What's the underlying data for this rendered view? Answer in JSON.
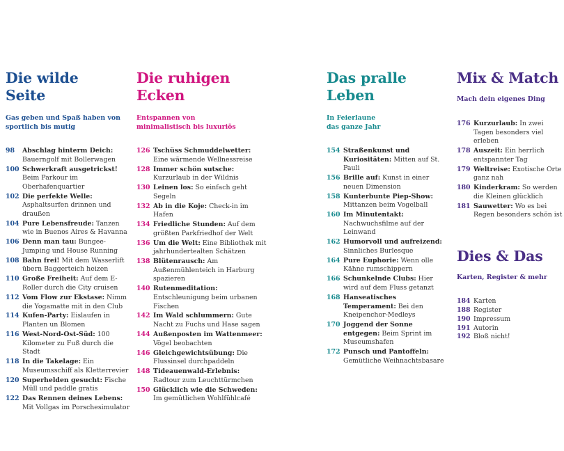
{
  "sections": [
    {
      "title_line1": "Die wilde",
      "title_line2": "Seite",
      "subtitle_line1": "Gas geben und Spaß haben von",
      "subtitle_line2": "sportlich bis mutig",
      "accent": "#1d4f91",
      "entries": [
        {
          "num": "98",
          "title": "Abschlag hinterm Deich:",
          "desc": "Bauerngolf mit Bollerwagen"
        },
        {
          "num": "100",
          "title": "Schwerkraft ausgetrickst!",
          "desc": "Beim Parkour im Oberhafenquartier"
        },
        {
          "num": "102",
          "title": "Die perfekte Welle:",
          "desc": "Asphaltsurfen drinnen und draußen"
        },
        {
          "num": "104",
          "title": "Pure Lebensfreude:",
          "desc": "Tanzen wie in Buenos Aires & Havanna"
        },
        {
          "num": "106",
          "title": "Denn man tau:",
          "desc": "Bungee-Jumping und House Running"
        },
        {
          "num": "108",
          "title": "Bahn frei!",
          "desc": "Mit dem Wasserlift übern Baggerteich heizen"
        },
        {
          "num": "110",
          "title": "Große Freiheit:",
          "desc": "Auf dem E-Roller durch die City cruisen"
        },
        {
          "num": "112",
          "title": "Vom Flow zur Ekstase:",
          "desc": "Nimm die Yogamatte mit in den Club"
        },
        {
          "num": "114",
          "title": "Kufen-Party:",
          "desc": "Eislaufen in Planten un Blomen"
        },
        {
          "num": "116",
          "title": "West-Nord-Ost-Süd:",
          "desc": "100 Kilometer zu Fuß durch die Stadt"
        },
        {
          "num": "118",
          "title": "In die Takelage:",
          "desc": "Ein Museumsschiff als Kletterrevier"
        },
        {
          "num": "120",
          "title": "Superhelden gesucht:",
          "desc": "Fische Müll und paddle gratis"
        },
        {
          "num": "122",
          "title": "Das Rennen deines Lebens:",
          "desc": "Mit Vollgas im Porschesimulator"
        }
      ]
    },
    {
      "title_line1": "Die ruhigen",
      "title_line2": "Ecken",
      "subtitle_line1": "Entspannen von",
      "subtitle_line2": "minimalistisch bis luxuriös",
      "accent": "#d0157f",
      "entries": [
        {
          "num": "126",
          "title": "Tschüss Schmuddelwetter:",
          "desc": "Eine wärmende Wellnessreise"
        },
        {
          "num": "128",
          "title": "Immer schön sutsche:",
          "desc": "Kurzurlaub in der Wildnis"
        },
        {
          "num": "130",
          "title": "Leinen los:",
          "desc": "So einfach geht Segeln"
        },
        {
          "num": "132",
          "title": "Ab in die Koje:",
          "desc": "Check-in im Hafen"
        },
        {
          "num": "134",
          "title": "Friedliche Stunden:",
          "desc": "Auf dem größten Parkfriedhof der Welt"
        },
        {
          "num": "136",
          "title": "Um die Welt:",
          "desc": "Eine Bibliothek mit jahrhundertealten Schätzen"
        },
        {
          "num": "138",
          "title": "Blütenrausch:",
          "desc": "Am Außenmühlenteich in Harburg spazieren"
        },
        {
          "num": "140",
          "title": "Rutenmeditation:",
          "desc": "Entschleunigung beim urbanen Fischen"
        },
        {
          "num": "142",
          "title": "Im Wald schlummern:",
          "desc": "Gute Nacht zu Fuchs und Hase sagen"
        },
        {
          "num": "144",
          "title": "Außenposten im Wattenmeer:",
          "desc": "Vögel beobachten"
        },
        {
          "num": "146",
          "title": "Gleichgewichtsübung:",
          "desc": "Die Flussinsel durchpaddeln"
        },
        {
          "num": "148",
          "title": "Tideauenwald-Erlebnis:",
          "desc": "Radtour zum Leuchttürmchen"
        },
        {
          "num": "150",
          "title": "Glücklich wie die Schweden:",
          "desc": "Im gemütlichen Wohlfühlcafé"
        }
      ]
    },
    {
      "title_line1": "Das pralle",
      "title_line2": "Leben",
      "subtitle_line1": "In Feierlaune",
      "subtitle_line2": "das ganze Jahr",
      "accent": "#178a8e",
      "entries": [
        {
          "num": "154",
          "title": "Straßenkunst und Kuriositäten:",
          "desc": "Mitten auf St. Pauli"
        },
        {
          "num": "156",
          "title": "Brille auf:",
          "desc": "Kunst in einer neuen Dimension"
        },
        {
          "num": "158",
          "title": "Kunterbunte Piep-Show:",
          "desc": "Mittanzen beim Vogelball"
        },
        {
          "num": "160",
          "title": "Im Minutentakt:",
          "desc": "Nachwuchsfilme auf der Leinwand"
        },
        {
          "num": "162",
          "title": "Humorvoll und aufreizend:",
          "desc": "Sinnliches Burlesque"
        },
        {
          "num": "164",
          "title": "Pure Euphorie:",
          "desc": "Wenn olle Kähne rumschippern"
        },
        {
          "num": "166",
          "title": "Schunkelnde Clubs:",
          "desc": "Hier wird auf dem Fluss getanzt"
        },
        {
          "num": "168",
          "title": "Hanseatisches Temperament:",
          "desc": "Bei den Kneipenchor-Medleys"
        },
        {
          "num": "170",
          "title": "Joggend der Sonne entgegen:",
          "desc": "Beim Sprint im Museumshafen"
        },
        {
          "num": "172",
          "title": "Punsch und Pantoffeln:",
          "desc": "Gemütliche Weihnachtsbasare"
        }
      ]
    },
    {
      "title_line1": "Mix & Match",
      "subtitle_line1": "Mach dein eigenes Ding",
      "accent": "#4a2f86",
      "entries": [
        {
          "num": "176",
          "title": "Kurzurlaub:",
          "desc": "In zwei Tagen besonders viel erleben"
        },
        {
          "num": "178",
          "title": "Auszeit:",
          "desc": "Ein herrlich entspannter Tag"
        },
        {
          "num": "179",
          "title": "Weltreise:",
          "desc": "Exotische Orte ganz nah"
        },
        {
          "num": "180",
          "title": "Kinderkram:",
          "desc": "So werden die Kleinen glücklich"
        },
        {
          "num": "181",
          "title": "Sauwetter:",
          "desc": "Wo es bei Regen besonders schön ist"
        }
      ]
    },
    {
      "title_line1": "Dies & Das",
      "subtitle_line1": "Karten, Register & mehr",
      "accent": "#4a2f86",
      "entries": [
        {
          "num": "184",
          "title": "",
          "desc": "Karten"
        },
        {
          "num": "188",
          "title": "",
          "desc": "Register"
        },
        {
          "num": "190",
          "title": "",
          "desc": "Impressum"
        },
        {
          "num": "191",
          "title": "",
          "desc": "Autorin"
        },
        {
          "num": "192",
          "title": "",
          "desc": "Bloß nicht!"
        }
      ]
    }
  ]
}
